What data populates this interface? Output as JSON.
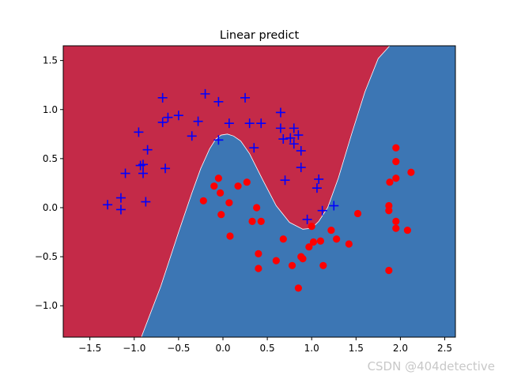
{
  "chart_data": {
    "type": "scatter",
    "title": "Linear predict",
    "xlabel": "",
    "ylabel": "",
    "xlim": [
      -1.8,
      2.62
    ],
    "ylim": [
      -1.32,
      1.65
    ],
    "xticks": [
      -1.5,
      -1.0,
      -0.5,
      0.0,
      0.5,
      1.0,
      1.5,
      2.0,
      2.5
    ],
    "xtick_labels": [
      "−1.5",
      "−1.0",
      "−0.5",
      "0.0",
      "0.5",
      "1.0",
      "1.5",
      "2.0",
      "2.5"
    ],
    "yticks": [
      -1.0,
      -0.5,
      0.0,
      0.5,
      1.0,
      1.5
    ],
    "ytick_labels": [
      "−1.0",
      "−0.5",
      "0.0",
      "0.5",
      "1.0",
      "1.5"
    ],
    "grid": false,
    "colors": {
      "region_class0": "#c42a48",
      "region_class1": "#3c76b4",
      "class0_marker": "#0000ff",
      "class1_marker": "#ff0000"
    },
    "decision_boundary": {
      "x": [
        -0.92,
        -0.7,
        -0.5,
        -0.35,
        -0.25,
        -0.15,
        -0.08,
        -0.02,
        0.05,
        0.12,
        0.2,
        0.3,
        0.45,
        0.6,
        0.75,
        0.9,
        1.0,
        1.08,
        1.18,
        1.3,
        1.45,
        1.6,
        1.75,
        1.88
      ],
      "y": [
        -1.32,
        -0.8,
        -0.25,
        0.15,
        0.4,
        0.6,
        0.7,
        0.74,
        0.75,
        0.73,
        0.68,
        0.55,
        0.28,
        0.02,
        -0.15,
        -0.22,
        -0.21,
        -0.14,
        0.0,
        0.3,
        0.75,
        1.18,
        1.52,
        1.65
      ]
    },
    "series": [
      {
        "marker": "plus",
        "color": "#0000ff",
        "points": [
          [
            -0.68,
            1.12
          ],
          [
            -0.2,
            1.16
          ],
          [
            -0.05,
            1.08
          ],
          [
            0.25,
            1.12
          ],
          [
            -0.95,
            0.77
          ],
          [
            -0.68,
            0.87
          ],
          [
            -0.62,
            0.92
          ],
          [
            -0.5,
            0.94
          ],
          [
            -0.28,
            0.88
          ],
          [
            -0.35,
            0.73
          ],
          [
            0.07,
            0.86
          ],
          [
            0.3,
            0.86
          ],
          [
            0.43,
            0.86
          ],
          [
            0.65,
            0.97
          ],
          [
            0.65,
            0.81
          ],
          [
            0.8,
            0.81
          ],
          [
            0.68,
            0.7
          ],
          [
            0.76,
            0.71
          ],
          [
            0.85,
            0.74
          ],
          [
            0.8,
            0.65
          ],
          [
            0.88,
            0.58
          ],
          [
            -0.05,
            0.69
          ],
          [
            0.35,
            0.61
          ],
          [
            -0.85,
            0.59
          ],
          [
            -0.93,
            0.43
          ],
          [
            -0.9,
            0.44
          ],
          [
            -0.9,
            0.35
          ],
          [
            -1.1,
            0.35
          ],
          [
            -0.65,
            0.4
          ],
          [
            0.88,
            0.41
          ],
          [
            0.7,
            0.28
          ],
          [
            1.08,
            0.29
          ],
          [
            1.06,
            0.2
          ],
          [
            -1.15,
            0.1
          ],
          [
            -1.3,
            0.03
          ],
          [
            -1.15,
            -0.02
          ],
          [
            -0.87,
            0.06
          ],
          [
            1.25,
            0.02
          ],
          [
            1.12,
            -0.03
          ],
          [
            0.95,
            -0.12
          ]
        ]
      },
      {
        "marker": "circle",
        "color": "#ff0000",
        "points": [
          [
            1.95,
            0.61
          ],
          [
            1.95,
            0.47
          ],
          [
            2.12,
            0.36
          ],
          [
            1.95,
            0.3
          ],
          [
            1.88,
            0.26
          ],
          [
            -0.05,
            0.3
          ],
          [
            -0.1,
            0.22
          ],
          [
            0.17,
            0.22
          ],
          [
            0.27,
            0.26
          ],
          [
            -0.03,
            0.15
          ],
          [
            -0.22,
            0.07
          ],
          [
            0.07,
            0.05
          ],
          [
            0.38,
            0.0
          ],
          [
            1.87,
            0.02
          ],
          [
            1.87,
            -0.03
          ],
          [
            1.52,
            -0.06
          ],
          [
            -0.02,
            -0.07
          ],
          [
            0.33,
            -0.14
          ],
          [
            0.43,
            -0.14
          ],
          [
            1.95,
            -0.14
          ],
          [
            1.0,
            -0.19
          ],
          [
            1.95,
            -0.21
          ],
          [
            2.08,
            -0.23
          ],
          [
            1.22,
            -0.23
          ],
          [
            0.08,
            -0.29
          ],
          [
            1.02,
            -0.35
          ],
          [
            1.1,
            -0.34
          ],
          [
            0.68,
            -0.32
          ],
          [
            1.28,
            -0.32
          ],
          [
            1.42,
            -0.37
          ],
          [
            0.97,
            -0.4
          ],
          [
            0.4,
            -0.47
          ],
          [
            0.88,
            -0.5
          ],
          [
            0.9,
            -0.52
          ],
          [
            0.6,
            -0.54
          ],
          [
            0.78,
            -0.59
          ],
          [
            1.13,
            -0.59
          ],
          [
            0.4,
            -0.62
          ],
          [
            1.87,
            -0.64
          ],
          [
            0.85,
            -0.82
          ]
        ]
      }
    ]
  },
  "watermark": "CSDN @404detective"
}
